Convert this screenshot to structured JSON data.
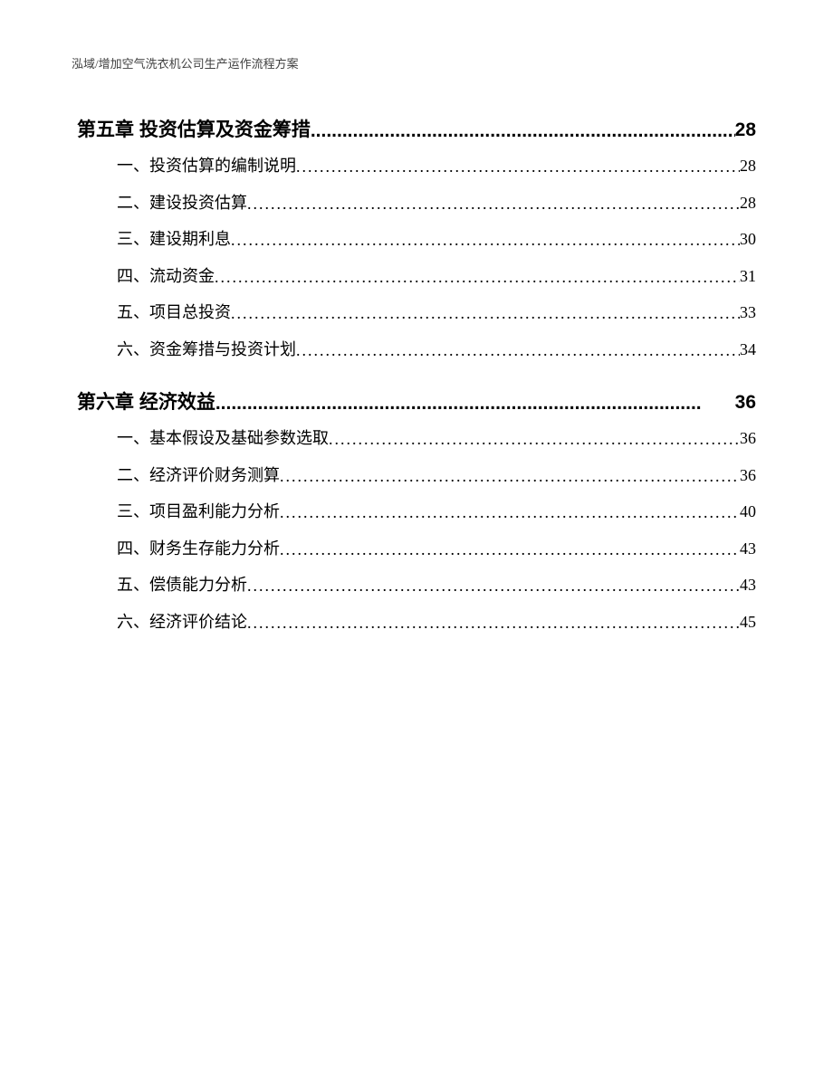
{
  "document": {
    "header": "泓域/增加空气洗衣机公司生产运作流程方案",
    "background_color": "#ffffff",
    "text_color": "#000000",
    "header_color": "#404040"
  },
  "typography": {
    "header_fontsize": 13,
    "chapter_fontsize": 21,
    "sub_fontsize": 18,
    "chapter_font": "SimHei",
    "body_font": "SimSun",
    "line_height_sub": 2.25
  },
  "toc": {
    "chapters": [
      {
        "title": "第五章 投资估算及资金筹措",
        "page": "28",
        "items": [
          {
            "marker": "一、",
            "label": "投资估算的编制说明",
            "page": "28"
          },
          {
            "marker": "二、",
            "label": "建设投资估算",
            "page": "28"
          },
          {
            "marker": "三、",
            "label": "建设期利息",
            "page": "30"
          },
          {
            "marker": "四、",
            "label": "流动资金",
            "page": "31"
          },
          {
            "marker": "五、",
            "label": "项目总投资",
            "page": "33"
          },
          {
            "marker": "六、",
            "label": "资金筹措与投资计划",
            "page": "34"
          }
        ]
      },
      {
        "title": "第六章 经济效益",
        "page": "36",
        "items": [
          {
            "marker": "一、",
            "label": "基本假设及基础参数选取",
            "page": "36"
          },
          {
            "marker": "二、",
            "label": "经济评价财务测算",
            "page": "36"
          },
          {
            "marker": "三、",
            "label": "项目盈利能力分析",
            "page": "40"
          },
          {
            "marker": "四、",
            "label": "财务生存能力分析",
            "page": "43"
          },
          {
            "marker": "五、",
            "label": "偿债能力分析",
            "page": "43"
          },
          {
            "marker": "六、",
            "label": "经济评价结论",
            "page": "45"
          }
        ]
      }
    ]
  },
  "leader": {
    "dots": "..............................................................................................................................................................",
    "dots_bold": "............................................................................................"
  }
}
